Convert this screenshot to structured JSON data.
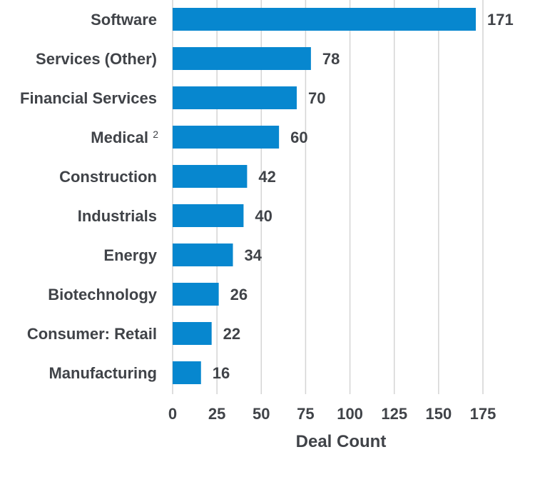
{
  "chart_data": {
    "type": "bar",
    "orientation": "horizontal",
    "categories": [
      "Software",
      "Services (Other)",
      "Financial Services",
      "Medical",
      "Construction",
      "Industrials",
      "Energy",
      "Biotechnology",
      "Consumer: Retail",
      "Manufacturing"
    ],
    "category_superscripts": {
      "Medical": "2"
    },
    "values": [
      171,
      78,
      70,
      60,
      42,
      40,
      34,
      26,
      22,
      16
    ],
    "xlabel": "Deal Count",
    "ylabel": "",
    "xlim": [
      0,
      175
    ],
    "xticks": [
      "0",
      "25",
      "50",
      "75",
      "100",
      "125",
      "150",
      "175"
    ],
    "grid": "vertical",
    "data_labels": true,
    "colors": {
      "bar": "#0787cf",
      "text": "#404348",
      "grid": "#d4d4d4"
    }
  }
}
